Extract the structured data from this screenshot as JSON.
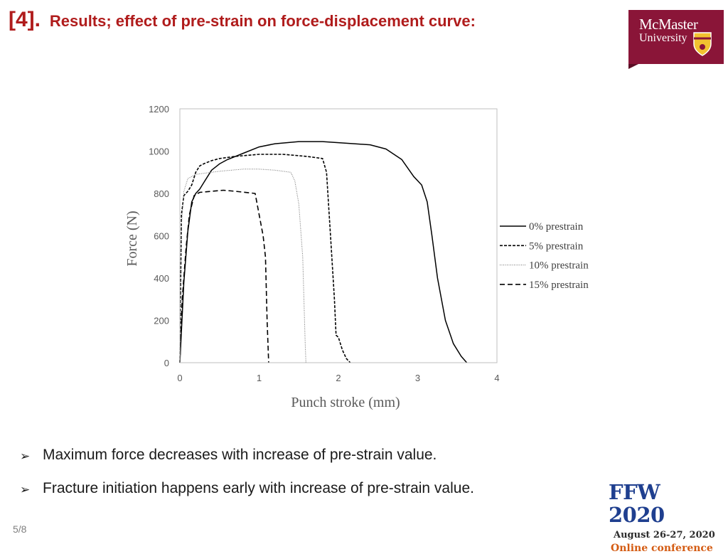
{
  "header": {
    "number": "[4].",
    "title": "Results; effect of pre-strain on force-displacement curve:"
  },
  "logo": {
    "line1": "McMaster",
    "line2": "University",
    "color": "#8a1538"
  },
  "chart_data": {
    "type": "line",
    "xlabel": "Punch stroke (mm)",
    "ylabel": "Force (N)",
    "xlim": [
      0,
      4
    ],
    "ylim": [
      0,
      1200
    ],
    "xticks": [
      "0",
      "1",
      "2",
      "3",
      "4"
    ],
    "yticks": [
      "0",
      "200",
      "400",
      "600",
      "800",
      "1000",
      "1200"
    ],
    "legend_position": "right",
    "grid": false,
    "series": [
      {
        "name": "0% prestrain",
        "style": "solid",
        "x": [
          0,
          0.05,
          0.1,
          0.15,
          0.2,
          0.25,
          0.3,
          0.4,
          0.5,
          0.6,
          0.8,
          1.0,
          1.2,
          1.5,
          1.8,
          2.0,
          2.2,
          2.4,
          2.6,
          2.8,
          2.95,
          3.05,
          3.12,
          3.18,
          3.25,
          3.35,
          3.45,
          3.55,
          3.62
        ],
        "y": [
          0,
          380,
          620,
          760,
          800,
          820,
          850,
          910,
          940,
          960,
          990,
          1020,
          1035,
          1045,
          1045,
          1040,
          1035,
          1030,
          1010,
          960,
          880,
          840,
          760,
          600,
          400,
          200,
          90,
          30,
          0
        ]
      },
      {
        "name": "5% prestrain",
        "style": "dashed",
        "x": [
          0,
          0.02,
          0.05,
          0.1,
          0.15,
          0.2,
          0.25,
          0.3,
          0.4,
          0.5,
          0.7,
          1.0,
          1.3,
          1.6,
          1.8,
          1.85,
          1.9,
          1.95,
          1.97,
          2.0,
          2.05,
          2.1,
          2.15
        ],
        "y": [
          0,
          700,
          790,
          810,
          840,
          900,
          930,
          940,
          955,
          965,
          975,
          985,
          985,
          975,
          965,
          900,
          600,
          300,
          130,
          120,
          60,
          20,
          0
        ]
      },
      {
        "name": "10% prestrain",
        "style": "dotted",
        "x": [
          0,
          0.02,
          0.05,
          0.1,
          0.2,
          0.3,
          0.5,
          0.8,
          1.0,
          1.2,
          1.4,
          1.45,
          1.5,
          1.55,
          1.58,
          1.59
        ],
        "y": [
          0,
          650,
          810,
          870,
          890,
          895,
          905,
          915,
          915,
          910,
          900,
          860,
          750,
          500,
          100,
          0
        ]
      },
      {
        "name": "15% prestrain",
        "style": "longdash",
        "x": [
          0,
          0.03,
          0.08,
          0.12,
          0.18,
          0.25,
          0.4,
          0.55,
          0.7,
          0.95,
          1.0,
          1.05,
          1.08,
          1.1,
          1.12
        ],
        "y": [
          0,
          300,
          550,
          700,
          790,
          805,
          810,
          815,
          810,
          800,
          700,
          600,
          500,
          200,
          0
        ]
      }
    ]
  },
  "bullets": [
    "Maximum force decreases with increase of pre-strain value.",
    "Fracture initiation happens early with increase of pre-strain value."
  ],
  "bullet_icon": "arrow-right-icon",
  "page": "5/8",
  "ffw": {
    "title": "FFW 2020",
    "date": "August 26-27, 2020",
    "mode": "Online conference"
  }
}
